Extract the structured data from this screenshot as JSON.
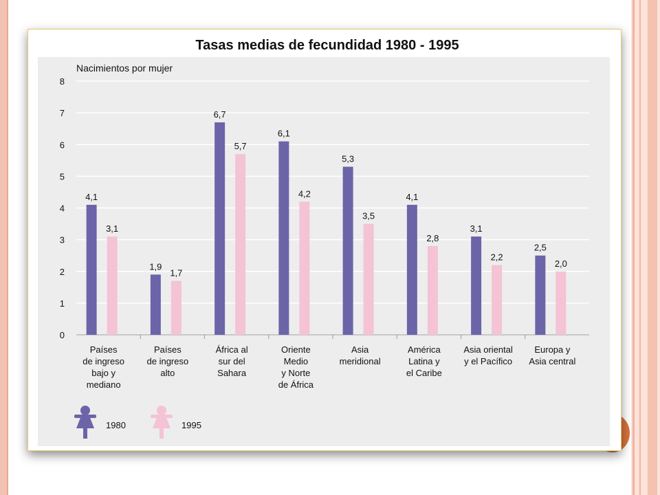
{
  "colors": {
    "series_1980": "#6c64a8",
    "series_1995": "#f4c3d5",
    "panel_border": "#e8c774",
    "slide_accent": "#d9723d",
    "slide_border": "#f2c2b3"
  },
  "chart_data": {
    "type": "bar",
    "title": "Tasas medias de fecundidad 1980 - 1995",
    "ylabel": "Nacimientos por mujer",
    "ylim": [
      0,
      8
    ],
    "yticks": [
      "0",
      "1",
      "2",
      "3",
      "4",
      "5",
      "6",
      "7",
      "8"
    ],
    "grid": true,
    "legend_position": "bottom-left",
    "legend_icon": "female-figure-icon",
    "categories": [
      [
        "Países",
        "de ingreso",
        "bajo y",
        "mediano"
      ],
      [
        "Países",
        "de ingreso",
        "alto"
      ],
      [
        "África al",
        "sur del",
        "Sahara"
      ],
      [
        "Oriente",
        "Medio",
        "y Norte",
        "de África"
      ],
      [
        "Asia",
        "meridional"
      ],
      [
        "América",
        "Latina y",
        "el Caribe"
      ],
      [
        "Asia oriental",
        "y el Pacífico"
      ],
      [
        "Europa y",
        "Asia central"
      ]
    ],
    "series": [
      {
        "name": "1980",
        "values": [
          4.1,
          1.9,
          6.7,
          6.1,
          5.3,
          4.1,
          3.1,
          2.5
        ],
        "labels": [
          "4,1",
          "1,9",
          "6,7",
          "6,1",
          "5,3",
          "4,1",
          "3,1",
          "2,5"
        ]
      },
      {
        "name": "1995",
        "values": [
          3.1,
          1.7,
          5.7,
          4.2,
          3.5,
          2.8,
          2.2,
          2.0
        ],
        "labels": [
          "3,1",
          "1,7",
          "5,7",
          "4,2",
          "3,5",
          "2,8",
          "2,2",
          "2,0"
        ]
      }
    ]
  }
}
